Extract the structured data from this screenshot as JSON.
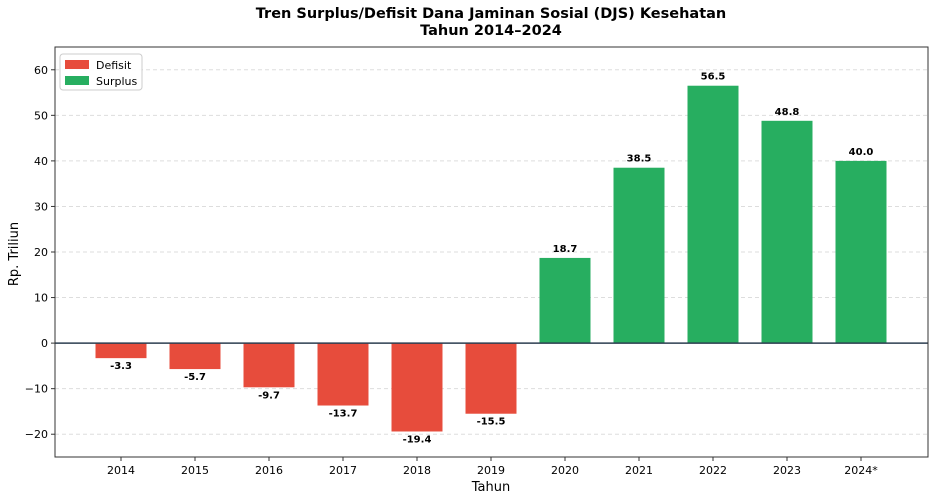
{
  "chart_data": {
    "type": "bar",
    "title": "Tren Surplus/Defisit Dana Jaminan Sosial (DJS) Kesehatan",
    "subtitle": "Tahun 2014–2024",
    "xlabel": "Tahun",
    "ylabel": "Rp. Triliun",
    "categories": [
      "2014",
      "2015",
      "2016",
      "2017",
      "2018",
      "2019",
      "2020",
      "2021",
      "2022",
      "2023",
      "2024*"
    ],
    "values": [
      -3.3,
      -5.7,
      -9.7,
      -13.7,
      -19.4,
      -15.5,
      18.7,
      38.5,
      56.5,
      48.8,
      40.0
    ],
    "data_labels": [
      "-3.3",
      "-5.7",
      "-9.7",
      "-13.7",
      "-19.4",
      "-15.5",
      "18.7",
      "38.5",
      "56.5",
      "48.8",
      "40.0"
    ],
    "ylim": [
      -25,
      65
    ],
    "yticks": [
      -20,
      -10,
      0,
      10,
      20,
      30,
      40,
      50,
      60
    ],
    "ytick_labels": [
      "−20",
      "−10",
      "0",
      "10",
      "20",
      "30",
      "40",
      "50",
      "60"
    ],
    "grid": true,
    "legend": {
      "placement": "top-left",
      "entries": [
        {
          "label": "Defisit",
          "color": "#e74c3c"
        },
        {
          "label": "Surplus",
          "color": "#27ae60"
        }
      ]
    },
    "colors": {
      "negative": "#e74c3c",
      "positive": "#27ae60",
      "zero_line": "#2c3e50"
    }
  }
}
